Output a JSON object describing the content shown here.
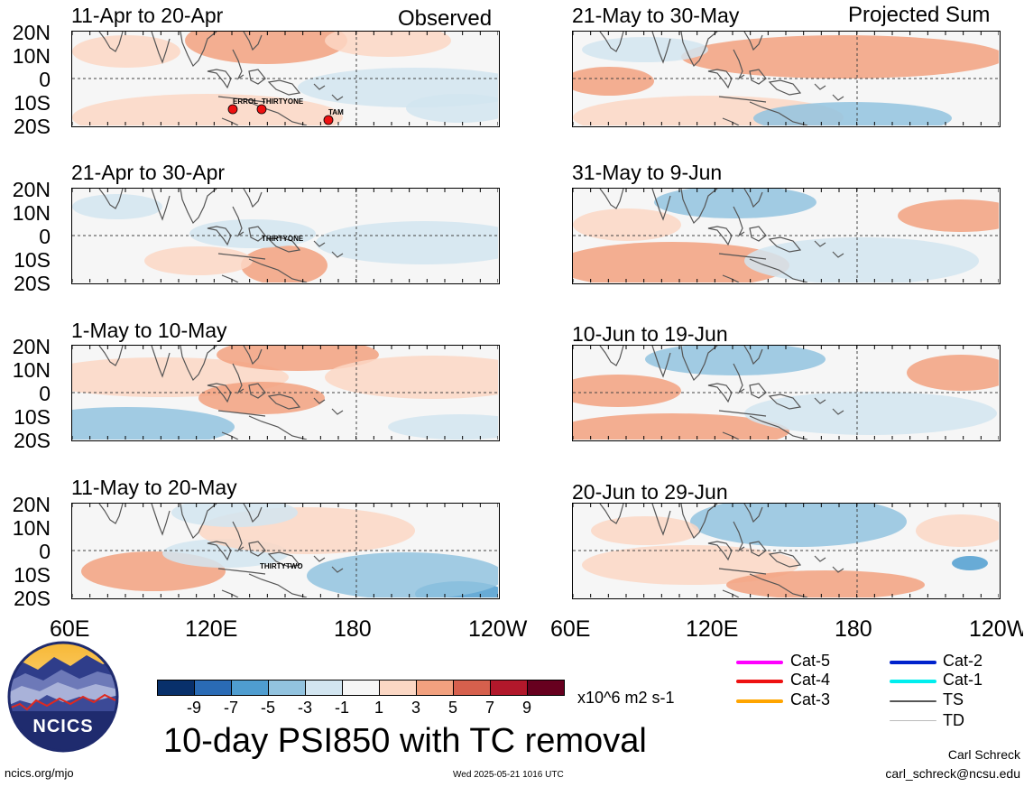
{
  "headers": {
    "observed": "Observed",
    "projected": "Projected Sum"
  },
  "panels": [
    {
      "title": "11-Apr to 20-Apr",
      "storms": [
        "ERROL",
        "THIRTYONE",
        "TAM"
      ]
    },
    {
      "title": "21-Apr to 30-Apr",
      "storms": [
        "THIRTYONE"
      ]
    },
    {
      "title": "1-May to 10-May",
      "storms": []
    },
    {
      "title": "11-May to 20-May",
      "storms": [
        "THIRTYTWO"
      ]
    },
    {
      "title": "21-May to 30-May",
      "storms": []
    },
    {
      "title": "31-May to 9-Jun",
      "storms": []
    },
    {
      "title": "10-Jun to 19-Jun",
      "storms": []
    },
    {
      "title": "20-Jun to 29-Jun",
      "storms": []
    }
  ],
  "lat_labels": [
    "20N",
    "10N",
    "0",
    "10S",
    "20S"
  ],
  "lon_labels_left": [
    "60E",
    "120E",
    "180",
    "120W"
  ],
  "lon_labels_right": [
    "60E",
    "120E",
    "180",
    "120W"
  ],
  "colorbar": {
    "colors": [
      "#08306b",
      "#2a6bb5",
      "#4f9dd0",
      "#92c3df",
      "#d2e5f0",
      "#f6f6f6",
      "#fbd7c4",
      "#f2a17f",
      "#d6604d",
      "#b2182b",
      "#67001f"
    ],
    "labels": [
      "-9",
      "-7",
      "-5",
      "-3",
      "-1",
      "1",
      "3",
      "5",
      "7",
      "9"
    ],
    "units": "x10^6 m2 s-1"
  },
  "legend": {
    "items": [
      {
        "label": "Cat-5",
        "color": "#ff00ff"
      },
      {
        "label": "Cat-4",
        "color": "#ee1111"
      },
      {
        "label": "Cat-3",
        "color": "#ffa500"
      },
      {
        "label": "Cat-2",
        "color": "#0022cc"
      },
      {
        "label": "Cat-1",
        "color": "#00eeee"
      },
      {
        "label": "TS",
        "color": "#555555"
      },
      {
        "label": "TD",
        "color": "#bbbbbb"
      }
    ]
  },
  "logo_text": "NCICS",
  "main_title": "10-day PSI850 with TC removal",
  "footer": {
    "url": "ncics.org/mjo",
    "timestamp": "Wed 2025-05-21 1016 UTC",
    "author": "Carl Schreck",
    "email": "carl_schreck@ncsu.edu"
  }
}
